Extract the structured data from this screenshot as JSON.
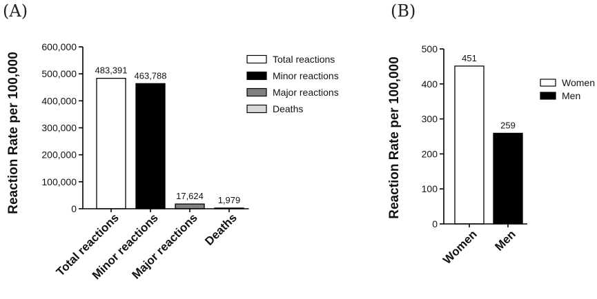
{
  "chart_data": [
    {
      "panel_label": "(A)",
      "type": "bar",
      "categories": [
        "Total reactions",
        "Minor reactions",
        "Major reactions",
        "Deaths"
      ],
      "values": [
        483391,
        463788,
        17624,
        1979
      ],
      "data_labels": [
        "483,391",
        "463,788",
        "17,624",
        "1,979"
      ],
      "colors": [
        "#ffffff",
        "#000000",
        "#808080",
        "#d9d9d9"
      ],
      "ylabel": "Reaction Rate per 100,000",
      "ylim": [
        0,
        600000
      ],
      "yticks": [
        0,
        100000,
        200000,
        300000,
        400000,
        500000,
        600000
      ],
      "ytick_labels": [
        "0",
        "100,000",
        "200,000",
        "300,000",
        "400,000",
        "500,000",
        "600,000"
      ],
      "legend": {
        "placement": "right",
        "entries": [
          "Total reactions",
          "Minor reactions",
          "Major reactions",
          "Deaths"
        ]
      }
    },
    {
      "panel_label": "(B)",
      "type": "bar",
      "categories": [
        "Women",
        "Men"
      ],
      "values": [
        451,
        259
      ],
      "data_labels": [
        "451",
        "259"
      ],
      "colors": [
        "#ffffff",
        "#000000"
      ],
      "ylabel": "Reaction Rate per 100,000",
      "ylim": [
        0,
        500
      ],
      "yticks": [
        0,
        100,
        200,
        300,
        400,
        500
      ],
      "ytick_labels": [
        "0",
        "100",
        "200",
        "300",
        "400",
        "500"
      ],
      "legend": {
        "placement": "right",
        "entries": [
          "Women",
          "Men"
        ]
      }
    }
  ]
}
